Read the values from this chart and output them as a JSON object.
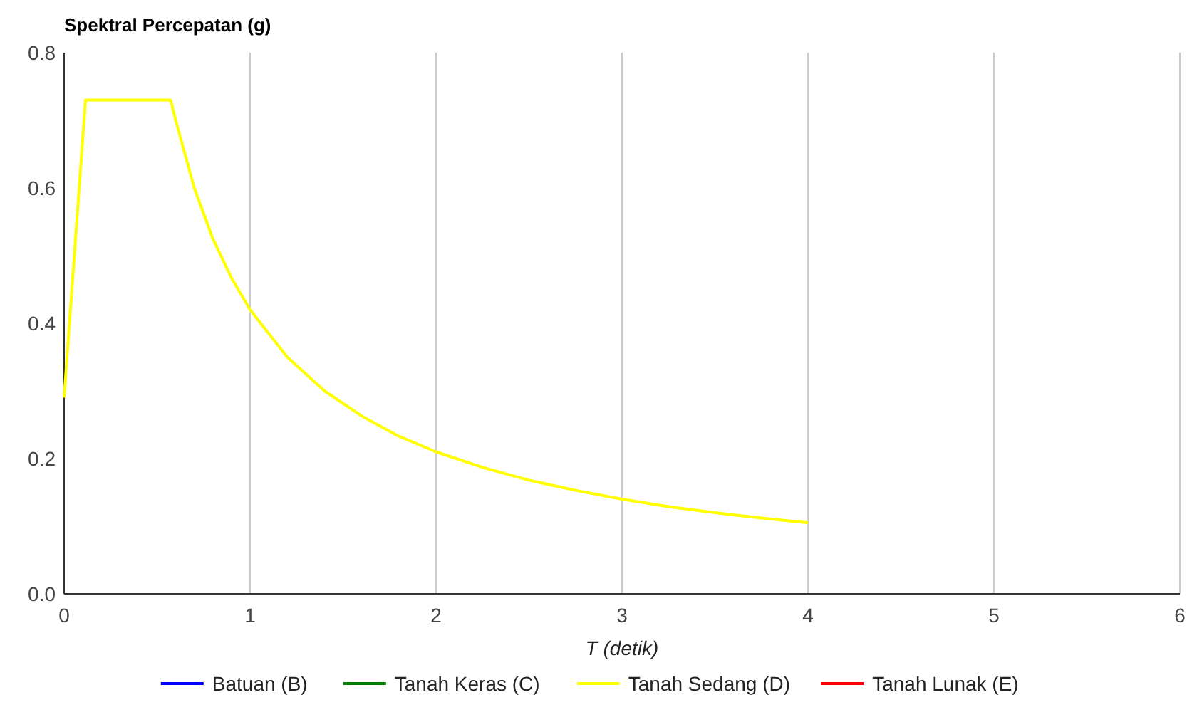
{
  "chart_data": {
    "type": "line",
    "title": "Spektral Percepatan (g)",
    "xlabel": "T (detik)",
    "x": [
      0,
      0.115,
      0.573,
      0.6,
      0.7,
      0.8,
      0.9,
      1.0,
      1.2,
      1.4,
      1.6,
      1.8,
      2.0,
      2.25,
      2.5,
      2.75,
      3.0,
      3.25,
      3.5,
      3.75,
      4.0
    ],
    "series": [
      {
        "name": "Batuan (B)",
        "color": "#0000ff",
        "values": [
          null,
          null,
          null,
          null,
          null,
          null,
          null,
          null,
          null,
          null,
          null,
          null,
          null,
          null,
          null,
          null,
          null,
          null,
          null,
          null,
          null
        ]
      },
      {
        "name": "Tanah Keras (C)",
        "color": "#008000",
        "values": [
          null,
          null,
          null,
          null,
          null,
          null,
          null,
          null,
          null,
          null,
          null,
          null,
          null,
          null,
          null,
          null,
          null,
          null,
          null,
          null,
          null
        ]
      },
      {
        "name": "Tanah Sedang (D)",
        "color": "#ffff00",
        "values": [
          0.29,
          0.73,
          0.73,
          0.7,
          0.6,
          0.525,
          0.467,
          0.42,
          0.35,
          0.3,
          0.263,
          0.233,
          0.21,
          0.187,
          0.168,
          0.153,
          0.14,
          0.129,
          0.12,
          0.112,
          0.105
        ]
      },
      {
        "name": "Tanah Lunak (E)",
        "color": "#ff0000",
        "values": [
          null,
          null,
          null,
          null,
          null,
          null,
          null,
          null,
          null,
          null,
          null,
          null,
          null,
          null,
          null,
          null,
          null,
          null,
          null,
          null,
          null
        ]
      }
    ],
    "xlim": [
      0,
      6
    ],
    "xticks": [
      0,
      1,
      2,
      3,
      4,
      5,
      6
    ],
    "ylim": [
      0,
      0.8
    ],
    "yticks": [
      {
        "value": 0,
        "label": "0.0"
      },
      {
        "value": 0.2,
        "label": "0.2"
      },
      {
        "value": 0.4,
        "label": "0.4"
      },
      {
        "value": 0.6,
        "label": "0.6"
      },
      {
        "value": 0.8,
        "label": "0.8"
      }
    ],
    "grid": "x",
    "legend": "bottom",
    "line_style": "solid",
    "marker": "none"
  }
}
